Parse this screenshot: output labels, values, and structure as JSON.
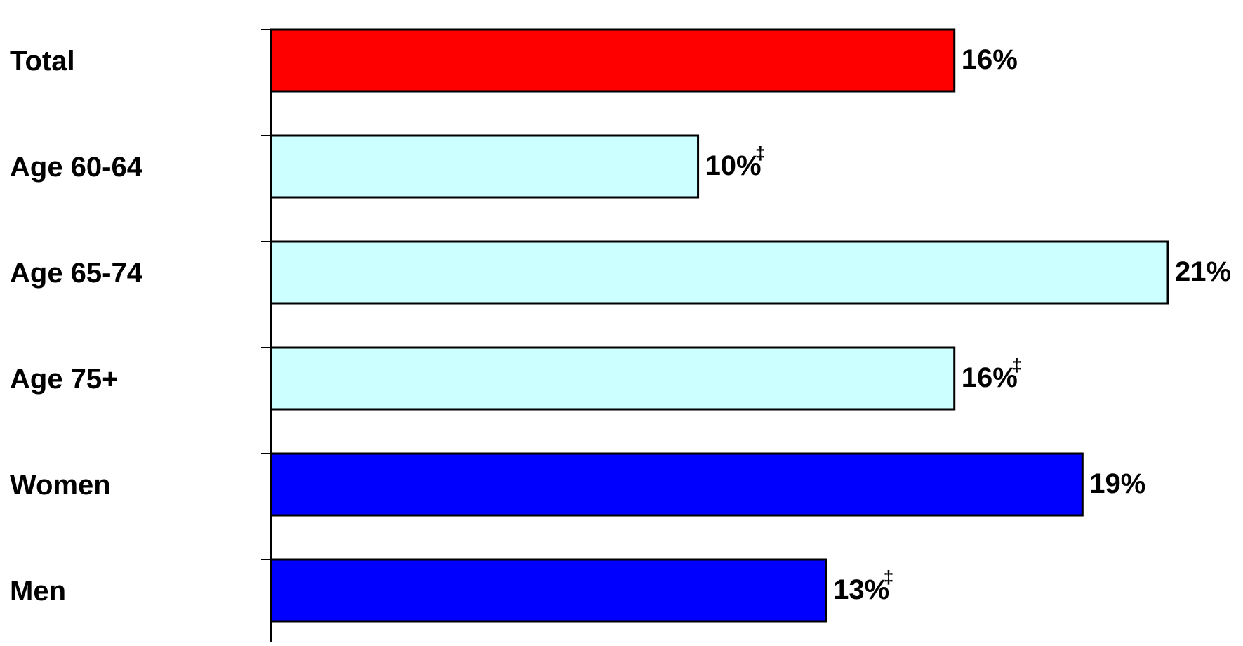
{
  "chart_data": {
    "type": "bar",
    "orientation": "horizontal",
    "categories": [
      "Total",
      "Age 60-64",
      "Age 65-74",
      "Age 75+",
      "Women",
      "Men"
    ],
    "values": [
      16,
      10,
      21,
      16,
      19,
      13
    ],
    "value_labels": [
      "16%",
      "10%",
      "21%",
      "16%",
      "19%",
      "13%"
    ],
    "label_marks": [
      "",
      "‡",
      "",
      "‡",
      "",
      "‡"
    ],
    "bar_colors": [
      "#ff0000",
      "#ccffff",
      "#ccffff",
      "#ccffff",
      "#0000ff",
      "#0000ff"
    ],
    "xlim": [
      0,
      21
    ],
    "grid": false,
    "legend": "none"
  }
}
